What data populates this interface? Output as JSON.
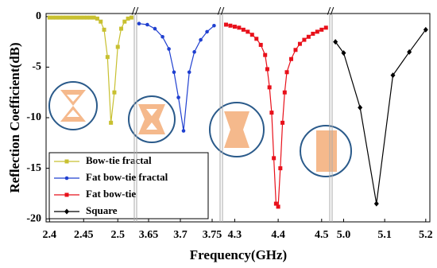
{
  "chart_data": {
    "type": "line",
    "xlabel": "Frequency(GHz)",
    "ylabel": "Reflection Coefficient(dB)",
    "ylim": [
      -20.3,
      0.3
    ],
    "yticks": [
      -20,
      -15,
      -10,
      -5,
      0
    ],
    "legend": "lower left",
    "panels": [
      {
        "xlim": [
          2.395,
          2.523
        ],
        "xticks": [
          2.4,
          2.45,
          2.5
        ],
        "series": [
          {
            "name": "Bow-tie fractal",
            "color": "#c8c030",
            "marker": "square",
            "x": [
              2.4,
              2.405,
              2.41,
              2.415,
              2.42,
              2.425,
              2.43,
              2.435,
              2.44,
              2.445,
              2.45,
              2.455,
              2.46,
              2.465,
              2.47,
              2.475,
              2.48,
              2.485,
              2.49,
              2.495,
              2.5,
              2.505,
              2.51,
              2.515,
              2.52
            ],
            "values": [
              -0.1,
              -0.1,
              -0.1,
              -0.1,
              -0.1,
              -0.1,
              -0.1,
              -0.1,
              -0.1,
              -0.1,
              -0.1,
              -0.1,
              -0.1,
              -0.1,
              -0.2,
              -0.5,
              -1.3,
              -4,
              -10.5,
              -7.5,
              -3,
              -1.2,
              -0.5,
              -0.2,
              -0.1
            ]
          }
        ]
      },
      {
        "xlim": [
          3.63,
          3.76
        ],
        "xticks": [
          3.65,
          3.7,
          3.75
        ],
        "series": [
          {
            "name": "Fat bow-tie fractal",
            "color": "#2040d0",
            "marker": "circle",
            "x": [
              3.635,
              3.648,
              3.66,
              3.672,
              3.682,
              3.69,
              3.697,
              3.705,
              3.714,
              3.722,
              3.732,
              3.742,
              3.753
            ],
            "values": [
              -0.7,
              -0.8,
              -1.2,
              -2,
              -3.2,
              -5.5,
              -8,
              -11.3,
              -5.5,
              -3.5,
              -2.3,
              -1.5,
              -0.9
            ]
          }
        ]
      },
      {
        "xlim": [
          4.27,
          4.515
        ],
        "xticks": [
          4.3,
          4.4,
          4.5
        ],
        "series": [
          {
            "name": "Fat bow-tie",
            "color": "#e8101a",
            "marker": "square",
            "x": [
              4.28,
              4.29,
              4.3,
              4.31,
              4.32,
              4.33,
              4.34,
              4.35,
              4.36,
              4.37,
              4.375,
              4.38,
              4.385,
              4.39,
              4.395,
              4.4,
              4.405,
              4.41,
              4.415,
              4.42,
              4.43,
              4.44,
              4.45,
              4.46,
              4.47,
              4.48,
              4.49,
              4.5,
              4.51
            ],
            "values": [
              -0.8,
              -0.9,
              -1,
              -1.1,
              -1.3,
              -1.5,
              -1.8,
              -2.2,
              -2.8,
              -3.8,
              -5.2,
              -7,
              -9.5,
              -14,
              -18.5,
              -18.8,
              -15,
              -10.5,
              -7.5,
              -5.5,
              -4.2,
              -3.3,
              -2.7,
              -2.3,
              -2,
              -1.7,
              -1.5,
              -1.3,
              -1.1
            ]
          }
        ]
      },
      {
        "xlim": [
          4.97,
          5.21
        ],
        "xticks": [
          {
            "value": 5,
            "label": "5.0"
          },
          5.1,
          5.2
        ],
        "series": [
          {
            "name": "Square",
            "color": "#000000",
            "marker": "diamond",
            "x": [
              4.98,
              5.0,
              5.04,
              5.08,
              5.12,
              5.16,
              5.2
            ],
            "values": [
              -2.5,
              -3.6,
              -9,
              -18.5,
              -5.8,
              -3.5,
              -1.3
            ]
          }
        ]
      }
    ]
  }
}
